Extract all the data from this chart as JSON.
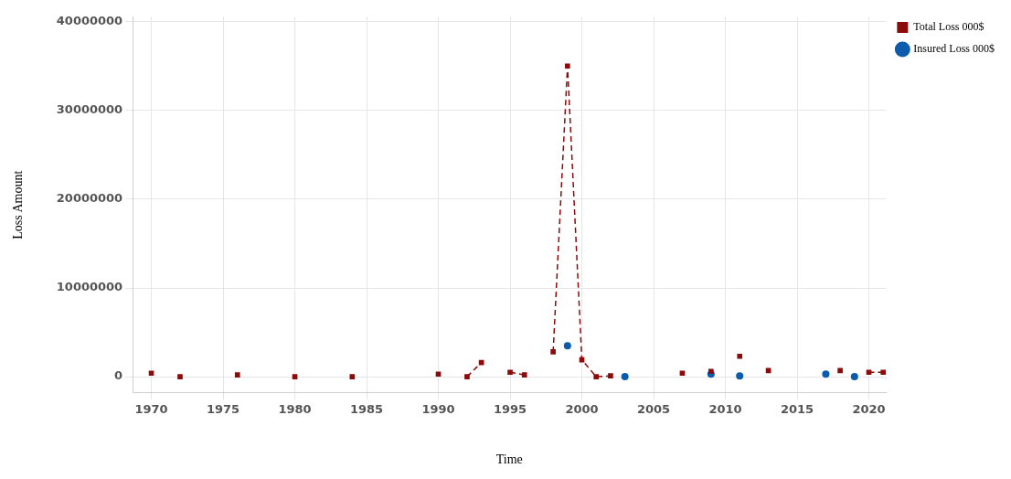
{
  "chart_data": {
    "type": "line",
    "xlabel": "Time",
    "ylabel": "Loss Amount",
    "x": [
      1970,
      1971,
      1972,
      1973,
      1974,
      1975,
      1976,
      1977,
      1978,
      1979,
      1980,
      1981,
      1982,
      1983,
      1984,
      1985,
      1986,
      1987,
      1988,
      1989,
      1990,
      1991,
      1992,
      1993,
      1994,
      1995,
      1996,
      1997,
      1998,
      1999,
      2000,
      2001,
      2002,
      2003,
      2004,
      2005,
      2006,
      2007,
      2008,
      2009,
      2010,
      2011,
      2012,
      2013,
      2014,
      2015,
      2016,
      2017,
      2018,
      2019,
      2020,
      2021
    ],
    "series": [
      {
        "name": "Insured Loss 000$",
        "type": "scatter",
        "color": "#0b5cad",
        "marker": "circle",
        "values": [
          null,
          null,
          null,
          null,
          null,
          null,
          null,
          null,
          null,
          null,
          null,
          null,
          null,
          null,
          null,
          null,
          null,
          null,
          null,
          null,
          null,
          null,
          null,
          null,
          null,
          null,
          null,
          null,
          null,
          3500000,
          null,
          null,
          null,
          0,
          null,
          null,
          null,
          null,
          null,
          300000,
          null,
          100000,
          null,
          null,
          null,
          null,
          null,
          300000,
          null,
          0,
          null,
          null
        ]
      },
      {
        "name": "Total Loss 000$",
        "color": "#8b0a0a",
        "marker": "square",
        "line_style": "dashed",
        "values": [
          400000,
          null,
          0,
          null,
          null,
          null,
          200000,
          null,
          null,
          null,
          0,
          null,
          null,
          null,
          0,
          null,
          null,
          null,
          null,
          null,
          300000,
          null,
          0,
          1600000,
          null,
          500000,
          200000,
          null,
          2800000,
          35000000,
          1900000,
          0,
          100000,
          null,
          null,
          null,
          null,
          400000,
          null,
          600000,
          null,
          2300000,
          null,
          700000,
          null,
          null,
          null,
          null,
          700000,
          null,
          500000,
          500000
        ]
      }
    ],
    "xlim": [
      1968.7,
      2021.2
    ],
    "xticks": [
      1970,
      1975,
      1980,
      1985,
      1990,
      1995,
      2000,
      2005,
      2010,
      2015,
      2020
    ],
    "ylim": [
      -1800000,
      40500000
    ],
    "yticks": [
      0,
      10000000,
      20000000,
      30000000,
      40000000
    ],
    "grid": true,
    "legend": "top right"
  }
}
